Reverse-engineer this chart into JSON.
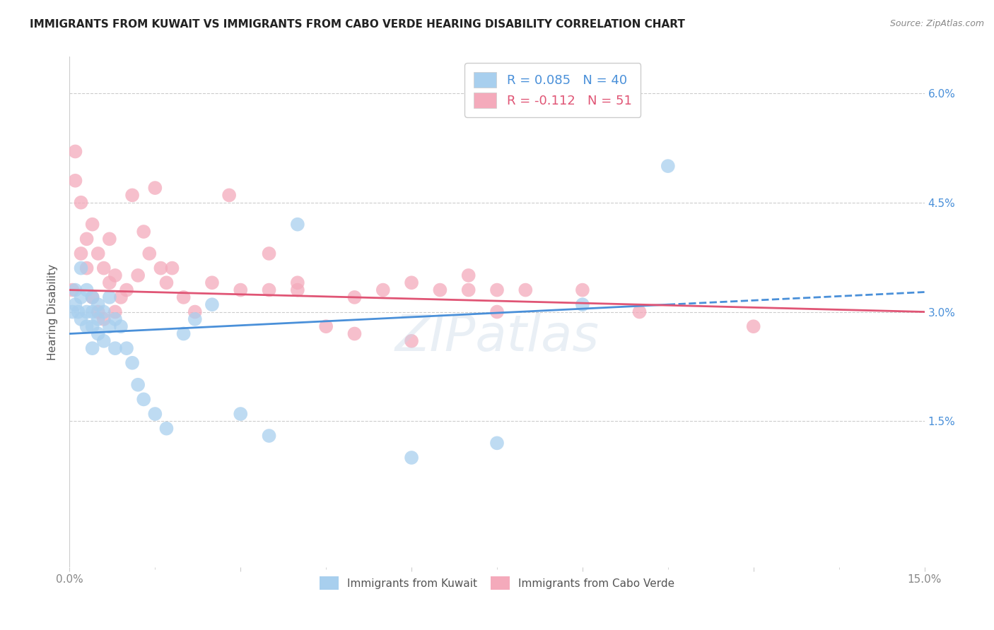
{
  "title": "IMMIGRANTS FROM KUWAIT VS IMMIGRANTS FROM CABO VERDE HEARING DISABILITY CORRELATION CHART",
  "source": "Source: ZipAtlas.com",
  "ylabel": "Hearing Disability",
  "yticks": [
    0.0,
    0.015,
    0.03,
    0.045,
    0.06
  ],
  "ytick_labels": [
    "",
    "1.5%",
    "3.0%",
    "4.5%",
    "6.0%"
  ],
  "xlim": [
    0.0,
    0.15
  ],
  "ylim": [
    -0.005,
    0.065
  ],
  "kuwait_color": "#A8CFEE",
  "cabo_verde_color": "#F4AABB",
  "kuwait_line_color": "#4A90D9",
  "cabo_verde_line_color": "#E05575",
  "R_kuwait": 0.085,
  "N_kuwait": 40,
  "R_cabo_verde": -0.112,
  "N_cabo_verde": 51,
  "kuwait_x": [
    0.0005,
    0.001,
    0.001,
    0.0015,
    0.002,
    0.002,
    0.002,
    0.003,
    0.003,
    0.003,
    0.004,
    0.004,
    0.004,
    0.004,
    0.005,
    0.005,
    0.005,
    0.006,
    0.006,
    0.007,
    0.007,
    0.008,
    0.008,
    0.009,
    0.01,
    0.011,
    0.012,
    0.013,
    0.015,
    0.017,
    0.02,
    0.022,
    0.025,
    0.03,
    0.035,
    0.04,
    0.06,
    0.075,
    0.09,
    0.105
  ],
  "kuwait_y": [
    0.03,
    0.031,
    0.033,
    0.03,
    0.029,
    0.032,
    0.036,
    0.028,
    0.03,
    0.033,
    0.025,
    0.028,
    0.03,
    0.032,
    0.027,
    0.029,
    0.031,
    0.026,
    0.03,
    0.028,
    0.032,
    0.025,
    0.029,
    0.028,
    0.025,
    0.023,
    0.02,
    0.018,
    0.016,
    0.014,
    0.027,
    0.029,
    0.031,
    0.016,
    0.013,
    0.042,
    0.01,
    0.012,
    0.031,
    0.05
  ],
  "cabo_verde_x": [
    0.0005,
    0.001,
    0.001,
    0.002,
    0.002,
    0.003,
    0.003,
    0.004,
    0.004,
    0.005,
    0.005,
    0.006,
    0.006,
    0.007,
    0.007,
    0.008,
    0.008,
    0.009,
    0.01,
    0.011,
    0.012,
    0.013,
    0.014,
    0.015,
    0.016,
    0.017,
    0.018,
    0.02,
    0.022,
    0.025,
    0.03,
    0.035,
    0.04,
    0.045,
    0.05,
    0.06,
    0.065,
    0.07,
    0.075,
    0.08,
    0.028,
    0.035,
    0.04,
    0.05,
    0.055,
    0.06,
    0.07,
    0.075,
    0.09,
    0.1,
    0.12
  ],
  "cabo_verde_y": [
    0.033,
    0.052,
    0.048,
    0.038,
    0.045,
    0.036,
    0.04,
    0.032,
    0.042,
    0.03,
    0.038,
    0.029,
    0.036,
    0.034,
    0.04,
    0.03,
    0.035,
    0.032,
    0.033,
    0.046,
    0.035,
    0.041,
    0.038,
    0.047,
    0.036,
    0.034,
    0.036,
    0.032,
    0.03,
    0.034,
    0.033,
    0.038,
    0.033,
    0.028,
    0.032,
    0.034,
    0.033,
    0.035,
    0.033,
    0.033,
    0.046,
    0.033,
    0.034,
    0.027,
    0.033,
    0.026,
    0.033,
    0.03,
    0.033,
    0.03,
    0.028
  ],
  "kuwait_line_start_x": 0.0,
  "kuwait_line_end_x": 0.105,
  "kuwait_line_dash_start_x": 0.105,
  "kuwait_line_dash_end_x": 0.15,
  "kuwait_line_start_y": 0.027,
  "kuwait_line_end_y": 0.031,
  "cabo_verde_line_start_x": 0.0,
  "cabo_verde_line_end_x": 0.15,
  "cabo_verde_line_start_y": 0.033,
  "cabo_verde_line_end_y": 0.03,
  "background_color": "#FFFFFF",
  "grid_color": "#CCCCCC",
  "title_fontsize": 11,
  "label_fontsize": 11,
  "tick_fontsize": 11,
  "legend_fontsize": 13
}
